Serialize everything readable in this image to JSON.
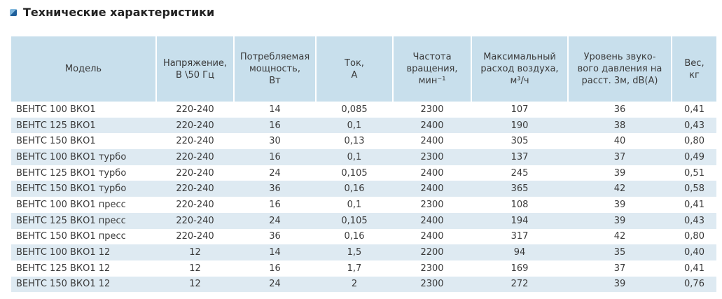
{
  "title": "Технические характеристики",
  "table": {
    "header": [
      [
        "Модель"
      ],
      [
        "Напряжение,",
        "В \\50 Гц"
      ],
      [
        "Потребляемая",
        "мощность,",
        "Вт"
      ],
      [
        "Ток,",
        "А"
      ],
      [
        "Частота",
        "вращения,",
        "мин⁻¹"
      ],
      [
        "Максимальный",
        "расход воздуха,",
        "м³/ч"
      ],
      [
        "Уровень звуко-",
        "вого давления на",
        "расст. 3м, dB(A)"
      ],
      [
        "Вес,",
        "кг"
      ]
    ],
    "rows": [
      [
        "ВЕНТС 100 ВКО1",
        "220-240",
        "14",
        "0,085",
        "2300",
        "107",
        "36",
        "0,41"
      ],
      [
        "ВЕНТС 125 ВКО1",
        "220-240",
        "16",
        "0,1",
        "2400",
        "190",
        "38",
        "0,43"
      ],
      [
        "ВЕНТС 150 ВКО1",
        "220-240",
        "30",
        "0,13",
        "2400",
        "305",
        "40",
        "0,80"
      ],
      [
        "ВЕНТС 100 ВКО1 турбо",
        "220-240",
        "16",
        "0,1",
        "2300",
        "137",
        "37",
        "0,49"
      ],
      [
        "ВЕНТС 125 ВКО1 турбо",
        "220-240",
        "24",
        "0,105",
        "2400",
        "245",
        "39",
        "0,51"
      ],
      [
        "ВЕНТС 150 ВКО1 турбо",
        "220-240",
        "36",
        "0,16",
        "2400",
        "365",
        "42",
        "0,58"
      ],
      [
        "ВЕНТС 100 ВКО1 пресс",
        "220-240",
        "16",
        "0,1",
        "2300",
        "108",
        "39",
        "0,41"
      ],
      [
        "ВЕНТС 125 ВКО1 пресс",
        "220-240",
        "24",
        "0,105",
        "2400",
        "194",
        "39",
        "0,43"
      ],
      [
        "ВЕНТС 150 ВКО1 пресс",
        "220-240",
        "36",
        "0,16",
        "2400",
        "317",
        "42",
        "0,80"
      ],
      [
        "ВЕНТС 100 ВКО1 12",
        "12",
        "14",
        "1,5",
        "2200",
        "94",
        "35",
        "0,40"
      ],
      [
        "ВЕНТС 125 ВКО1 12",
        "12",
        "16",
        "1,7",
        "2300",
        "169",
        "37",
        "0,41"
      ],
      [
        "ВЕНТС 150 ВКО1 12",
        "12",
        "24",
        "2",
        "2300",
        "272",
        "39",
        "0,76"
      ]
    ]
  }
}
